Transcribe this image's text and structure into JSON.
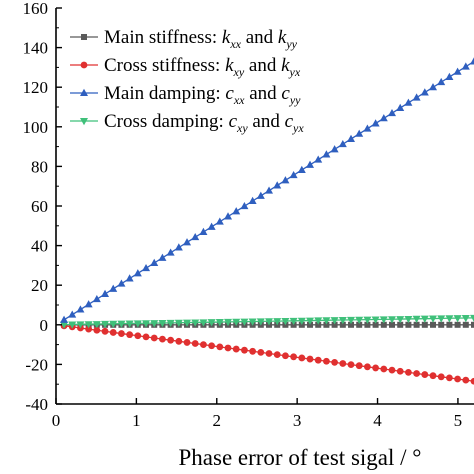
{
  "chart_data": {
    "type": "line",
    "xlabel": "Phase error of test sigal / °",
    "ylabel": "",
    "xlim": [
      0,
      5.2
    ],
    "ylim": [
      -40,
      160
    ],
    "xticks": [
      "0",
      "1",
      "2",
      "3",
      "4",
      "5"
    ],
    "yticks": [
      "-40",
      "-20",
      "0",
      "20",
      "40",
      "60",
      "80",
      "100",
      "120",
      "140",
      "160"
    ],
    "legend_position": "top-left",
    "series": [
      {
        "name": "Main stiffness: k_xx and k_yy",
        "legend": {
          "pre": "Main stiffness: ",
          "v1": "k",
          "s1": "xx",
          "mid": " and ",
          "v2": "k",
          "s2": "yy"
        },
        "color": "#5a5a5a",
        "marker": "square",
        "x_start": 0.1,
        "x_end": 5.2,
        "y_start": 0,
        "y_end": 0
      },
      {
        "name": "Cross stiffness: k_xy and k_yx",
        "legend": {
          "pre": "Cross stiffness: ",
          "v1": "k",
          "s1": "xy",
          "mid": " and ",
          "v2": "k",
          "s2": "yx"
        },
        "color": "#e03030",
        "marker": "circle",
        "x_start": 0.1,
        "x_end": 5.2,
        "y_start": -0.5,
        "y_end": -28.5
      },
      {
        "name": "Main damping: c_xx and c_yy",
        "legend": {
          "pre": "Main damping: ",
          "v1": "c",
          "s1": "xx",
          "mid": " and ",
          "v2": "c",
          "s2": "yy"
        },
        "color": "#2f5fbf",
        "marker": "triangle-up",
        "x_start": 0.1,
        "x_end": 5.2,
        "y_start": 2.5,
        "y_end": 133
      },
      {
        "name": "Cross damping: c_xy and c_yx",
        "legend": {
          "pre": "Cross damping: ",
          "v1": "c",
          "s1": "xy",
          "mid": " and ",
          "v2": "c",
          "s2": "yx"
        },
        "color": "#3fc07a",
        "marker": "triangle-down",
        "x_start": 0.1,
        "x_end": 5.2,
        "y_start": 0.1,
        "y_end": 3.5
      }
    ],
    "points_per_series": 51
  }
}
